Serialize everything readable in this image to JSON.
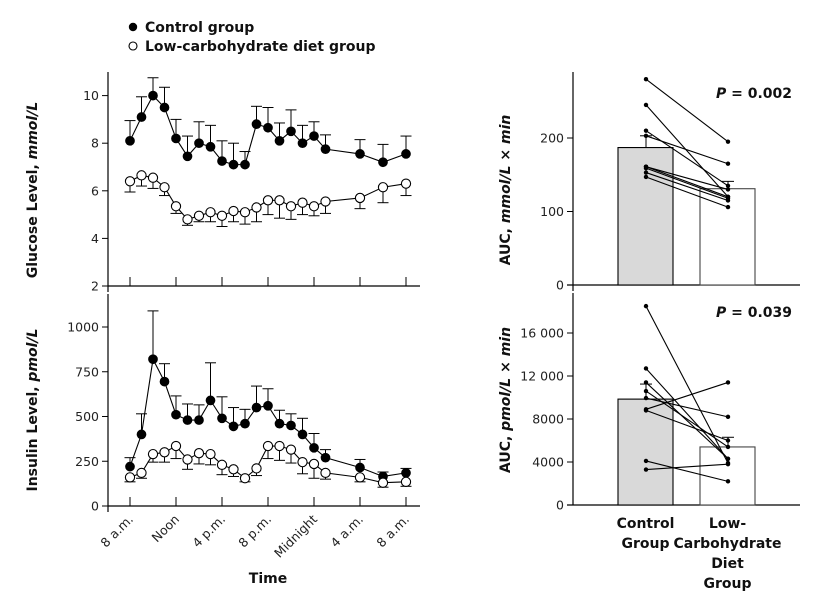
{
  "legend": {
    "control_label": "Control group",
    "lowcarb_label": "Low-carbohydrate diet group"
  },
  "chart_data": [
    {
      "id": "glucose-time",
      "type": "line",
      "ylabel_main": "Glucose Level, ",
      "ylabel_unit": "mmol/L",
      "xlabel": "",
      "ylim": [
        2,
        11
      ],
      "yticks": [
        2,
        4,
        6,
        8,
        10
      ],
      "x_hours": [
        0,
        1,
        2,
        3,
        4,
        5,
        6,
        7,
        8,
        9,
        10,
        11,
        12,
        13,
        14,
        15,
        16,
        17,
        20,
        22,
        24
      ],
      "xtick_hours": [
        0,
        4,
        8,
        12,
        16,
        20,
        24
      ],
      "series": [
        {
          "name": "Control group",
          "marker": "filled",
          "values": [
            8.1,
            9.1,
            10.0,
            9.5,
            8.2,
            7.45,
            8.0,
            7.85,
            7.25,
            7.1,
            7.1,
            8.8,
            8.65,
            8.1,
            8.5,
            8.0,
            8.3,
            7.75,
            7.55,
            7.2,
            7.55
          ],
          "error_up": [
            0.85,
            0.85,
            0.75,
            0.85,
            0.8,
            0.85,
            0.9,
            0.9,
            0.85,
            0.9,
            0.55,
            0.75,
            0.85,
            0.75,
            0.9,
            0.75,
            0.6,
            0.6,
            0.6,
            0.75,
            0.75
          ]
        },
        {
          "name": "Low-carbohydrate diet group",
          "marker": "open",
          "values": [
            6.4,
            6.65,
            6.55,
            6.15,
            5.35,
            4.8,
            4.95,
            5.1,
            4.95,
            5.15,
            5.1,
            5.3,
            5.6,
            5.6,
            5.35,
            5.5,
            5.35,
            5.55,
            5.7,
            6.15,
            6.3
          ],
          "error_down": [
            0.45,
            0.45,
            0.45,
            0.35,
            0.3,
            0.25,
            0.25,
            0.4,
            0.45,
            0.45,
            0.5,
            0.6,
            0.6,
            0.75,
            0.55,
            0.5,
            0.4,
            0.5,
            0.45,
            0.65,
            0.5
          ]
        }
      ]
    },
    {
      "id": "insulin-time",
      "type": "line",
      "ylabel_main": "Insulin Level, ",
      "ylabel_unit": "pmol/L",
      "xlabel": "Time",
      "ylim": [
        0,
        1200
      ],
      "yticks": [
        0,
        250,
        500,
        750,
        1000
      ],
      "x_hours": [
        0,
        1,
        2,
        3,
        4,
        5,
        6,
        7,
        8,
        9,
        10,
        11,
        12,
        13,
        14,
        15,
        16,
        17,
        20,
        22,
        24
      ],
      "xtick_hours": [
        0,
        4,
        8,
        12,
        16,
        20,
        24
      ],
      "xtick_labels": [
        "8 a.m.",
        "Noon",
        "4 p.m.",
        "8 p.m.",
        "Midnight",
        "4 a.m.",
        "8 a.m."
      ],
      "series": [
        {
          "name": "Control group",
          "marker": "filled",
          "values": [
            220,
            400,
            820,
            695,
            510,
            480,
            480,
            590,
            490,
            445,
            460,
            550,
            560,
            460,
            450,
            400,
            325,
            270,
            215,
            165,
            185
          ],
          "error_up": [
            50,
            115,
            270,
            100,
            105,
            90,
            85,
            210,
            120,
            105,
            80,
            120,
            95,
            75,
            65,
            90,
            80,
            45,
            45,
            25,
            25
          ]
        },
        {
          "name": "Low-carbohydrate diet group",
          "marker": "open",
          "values": [
            160,
            185,
            290,
            300,
            335,
            260,
            295,
            290,
            230,
            205,
            155,
            210,
            335,
            335,
            315,
            245,
            235,
            185,
            160,
            130,
            135
          ],
          "error_down": [
            25,
            30,
            45,
            55,
            70,
            55,
            60,
            60,
            55,
            40,
            20,
            40,
            70,
            80,
            75,
            65,
            80,
            35,
            25,
            25,
            25
          ]
        }
      ]
    },
    {
      "id": "glucose-auc",
      "type": "bar",
      "ylabel_main": "AUC, ",
      "ylabel_unit": "mmol/L × min",
      "ylim": [
        0,
        300
      ],
      "yticks": [
        0,
        100,
        200
      ],
      "ytick_labels": [
        "0",
        "100",
        "200"
      ],
      "categories": [
        "Control Group",
        "Low-Carbohydrate Diet Group"
      ],
      "values": [
        187,
        131
      ],
      "error_up": [
        16,
        10
      ],
      "p_label": "P",
      "p_value": " = 0.002",
      "paired": [
        [
          280,
          195
        ],
        [
          245,
          120
        ],
        [
          210,
          135
        ],
        [
          203,
          165
        ],
        [
          161,
          130
        ],
        [
          159,
          118
        ],
        [
          153,
          115
        ],
        [
          147,
          106
        ],
        [
          161,
          120
        ]
      ]
    },
    {
      "id": "insulin-auc",
      "type": "bar",
      "ylabel_main": "AUC, ",
      "ylabel_unit": "pmol/L × min",
      "ylim": [
        0,
        19500
      ],
      "yticks": [
        0,
        4000,
        8000,
        12000,
        16000
      ],
      "ytick_labels": [
        "0",
        "4000",
        "8000",
        "12 000",
        "16 000"
      ],
      "categories": [
        "Control Group",
        "Low-Carbohydrate Diet Group"
      ],
      "values": [
        9850,
        5400
      ],
      "error_up": [
        1400,
        900
      ],
      "p_label": "P",
      "p_value": " = 0.039",
      "category_label_lines": [
        [
          "Control",
          "Group"
        ],
        [
          "Low-",
          "Carbohydrate",
          "Diet",
          "Group"
        ]
      ],
      "paired": [
        [
          18500,
          3900
        ],
        [
          12700,
          4300
        ],
        [
          11400,
          4300
        ],
        [
          10600,
          5400
        ],
        [
          9950,
          8200
        ],
        [
          8900,
          11400
        ],
        [
          8800,
          6000
        ],
        [
          4100,
          2200
        ],
        [
          3300,
          3800
        ]
      ]
    }
  ]
}
